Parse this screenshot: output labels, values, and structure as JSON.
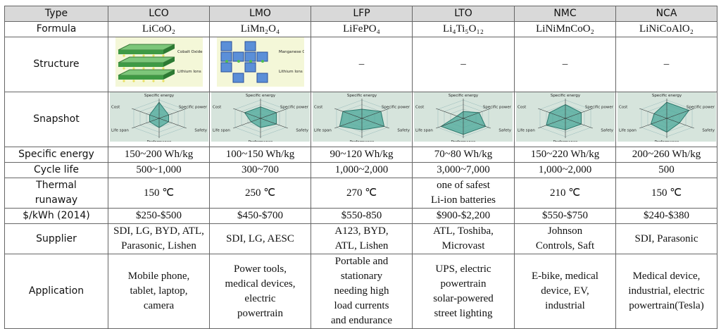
{
  "columns": [
    "Type",
    "LCO",
    "LMO",
    "LFP",
    "LTO",
    "NMC",
    "NCA"
  ],
  "rows": [
    {
      "label": "Formula",
      "cells": [
        "LiCoO₂",
        "LiMn₂O₄",
        "LiFePO₄",
        "Li₄Ti₅O₁₂",
        "LiNiMnCoO₂",
        "LiNiCoAlO₂"
      ]
    },
    {
      "label": "Structure",
      "cells": [
        {
          "labels": [
            "Cobalt Oxide",
            "Lithium Ions"
          ]
        },
        {
          "labels": [
            "Manganese Oxide",
            "Lithium Ions"
          ]
        },
        "–",
        "–",
        "–",
        "–"
      ]
    },
    {
      "label": "Snapshot",
      "axes": [
        "Specific energy",
        "Specific power",
        "Safety",
        "Performance",
        "Life span",
        "Cost"
      ],
      "rlim": [
        0,
        4
      ],
      "cells": [
        [
          3.5,
          1.5,
          1.5,
          2,
          1.5,
          1.5
        ],
        [
          2.5,
          2.5,
          2.5,
          2,
          1.5,
          2.5
        ],
        [
          2,
          3,
          3.5,
          2.5,
          3.5,
          3
        ],
        [
          1.5,
          2.5,
          3.5,
          3.5,
          3.5,
          1
        ],
        [
          3,
          2.5,
          2.5,
          2.5,
          3,
          2.5
        ],
        [
          3.5,
          3.5,
          2,
          3,
          2.5,
          2
        ]
      ]
    },
    {
      "label": "Specific energy",
      "cells": [
        "150~200 Wh/kg",
        "100~150 Wh/kg",
        "90~120 Wh/kg",
        "70~80 Wh/kg",
        "150~220 Wh/kg",
        "200~260 Wh/kg"
      ]
    },
    {
      "label": "Cycle life",
      "cells": [
        "500~1,000",
        "300~700",
        "1,000~2,000",
        "3,000~7,000",
        "1,000~2,000",
        "500"
      ]
    },
    {
      "label": "Thermal\nrunaway",
      "cells": [
        "150 ℃",
        "250 ℃",
        "270 ℃",
        "one of safest\nLi-ion batteries",
        "210 ℃",
        "150 ℃"
      ]
    },
    {
      "label": "$/kWh (2014)",
      "cells": [
        "$250-$500",
        "$450-$700",
        "$550-850",
        "$900-$2,200",
        "$550-$750",
        "$240-$380"
      ]
    },
    {
      "label": "Supplier",
      "cells": [
        "SDI, LG, BYD, ATL,\nParasonic, Lishen",
        "SDI, LG, AESC",
        "A123, BYD,\nATL, Lishen",
        "ATL, Toshiba,\nMicrovast",
        "Johnson\nControls, Saft",
        "SDI, Parasonic"
      ]
    },
    {
      "label": "Application",
      "cells": [
        "Mobile phone,\ntablet, laptop,\ncamera",
        "Power tools,\nmedical devices,\nelectric\npowertrain",
        "Portable and\nstationary\nneeding high\nload currents\nand endurance",
        "UPS, electric\npowertrain\nsolar-powered\nstreet lighting",
        "E-bike, medical\ndevice, EV,\nindustrial",
        "Medical device,\nindustrial, electric\npowertrain(Tesla)"
      ]
    }
  ]
}
